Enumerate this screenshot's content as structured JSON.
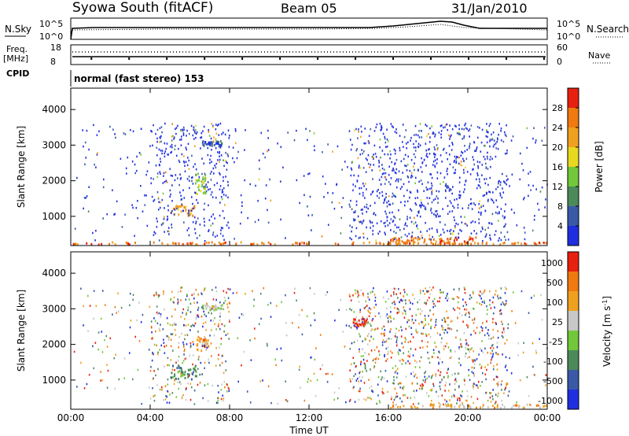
{
  "header": {
    "station": "Syowa South (fitACF)",
    "beam": "Beam 05",
    "date": "31/Jan/2010"
  },
  "top_panels": {
    "nsky_label": "N.Sky",
    "nsky_ticks": [
      "10^5",
      "10^0"
    ],
    "nsearch_label": "N.Search",
    "nsearch_ticks": [
      "10^5",
      "10^0"
    ],
    "freq_label": "Freq.",
    "freq_unit": "[MHz]",
    "freq_ticks": [
      "18",
      "8"
    ],
    "nave_label": "Nave",
    "nave_ticks": [
      "60",
      "0"
    ],
    "cpid_label": "CPID",
    "cpid_text": "normal (fast stereo) 153"
  },
  "x_axis": {
    "label": "Time UT",
    "ticks": [
      "00:00",
      "04:00",
      "08:00",
      "12:00",
      "16:00",
      "20:00",
      "00:00"
    ]
  },
  "chart_data": [
    {
      "type": "heatmap",
      "name": "power",
      "ylabel": "Slant Range [km]",
      "yticks": [
        "1000",
        "2000",
        "3000",
        "4000"
      ],
      "ylim": [
        180,
        4600
      ],
      "xlim": [
        0,
        24
      ],
      "colorbar": {
        "label": "Power [dB]",
        "ticks": [
          "4",
          "8",
          "12",
          "16",
          "20",
          "24",
          "28"
        ],
        "colors": [
          "#1f2fe0",
          "#3a5aa8",
          "#4c8a5a",
          "#72c83a",
          "#e8d820",
          "#f0a020",
          "#f07a10",
          "#e82010"
        ]
      },
      "features": [
        {
          "t": [
            0,
            24
          ],
          "r": [
            190,
            260
          ],
          "level": 6
        },
        {
          "t": [
            6.6,
            7.6
          ],
          "r": [
            2950,
            3100
          ],
          "level": 1
        },
        {
          "t": [
            5.0,
            6.2
          ],
          "r": [
            1000,
            1300
          ],
          "level": 5
        },
        {
          "t": [
            6.2,
            6.8
          ],
          "r": [
            1600,
            2200
          ],
          "level": 3
        },
        {
          "t": [
            16.0,
            20.5
          ],
          "r": [
            200,
            400
          ],
          "level": 6
        }
      ]
    },
    {
      "type": "heatmap",
      "name": "velocity",
      "ylabel": "Slant Range [km]",
      "yticks": [
        "1000",
        "2000",
        "3000",
        "4000"
      ],
      "ylim": [
        180,
        4600
      ],
      "xlim": [
        0,
        24
      ],
      "colorbar": {
        "label": "Velocity [m s^-1]",
        "ticks": [
          "1000",
          "500",
          "100",
          "25",
          "-25",
          "-100",
          "-500",
          "-1000"
        ],
        "colors": [
          "#1f2fe0",
          "#3a5aa8",
          "#4c8a5a",
          "#72c83a",
          "#c8c8c8",
          "#f0a020",
          "#f07a10",
          "#e82010"
        ]
      },
      "features": [
        {
          "t": [
            6.6,
            7.6
          ],
          "r": [
            2950,
            3100
          ],
          "level": 4
        },
        {
          "t": [
            6.2,
            6.9
          ],
          "r": [
            1800,
            2200
          ],
          "level": 5
        },
        {
          "t": [
            5.0,
            6.3
          ],
          "r": [
            1000,
            1400
          ],
          "level": 2
        },
        {
          "t": [
            14.2,
            14.9
          ],
          "r": [
            2500,
            2700
          ],
          "level": 7
        },
        {
          "t": [
            16.0,
            24.0
          ],
          "r": [
            200,
            300
          ],
          "level": 5
        }
      ]
    }
  ]
}
